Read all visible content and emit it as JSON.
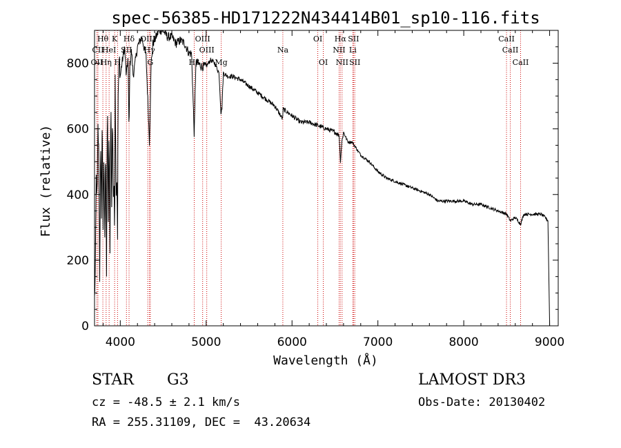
{
  "chart_data": {
    "type": "line",
    "title": "spec-56385-HD171222N434414B01_sp10-116.fits",
    "xlabel": "Wavelength (Å)",
    "ylabel": "Flux (relative)",
    "xlim": [
      3700,
      9100
    ],
    "ylim": [
      0,
      900
    ],
    "xticks": [
      4000,
      5000,
      6000,
      7000,
      8000,
      9000
    ],
    "yticks": [
      0,
      200,
      400,
      600,
      800
    ],
    "grid": false,
    "series": [
      {
        "name": "spectrum",
        "x": [
          3700,
          3710,
          3720,
          3730,
          3740,
          3750,
          3760,
          3770,
          3780,
          3790,
          3800,
          3810,
          3820,
          3830,
          3840,
          3850,
          3860,
          3870,
          3880,
          3890,
          3900,
          3910,
          3920,
          3930,
          3934,
          3940,
          3950,
          3960,
          3968,
          3975,
          3990,
          4000,
          4020,
          4050,
          4070,
          4090,
          4102,
          4110,
          4130,
          4150,
          4200,
          4250,
          4300,
          4340,
          4360,
          4380,
          4400,
          4450,
          4500,
          4550,
          4600,
          4650,
          4700,
          4750,
          4800,
          4830,
          4861,
          4880,
          4900,
          4950,
          5000,
          5050,
          5100,
          5150,
          5172,
          5183,
          5200,
          5250,
          5300,
          5400,
          5500,
          5600,
          5700,
          5800,
          5890,
          5896,
          5950,
          6000,
          6100,
          6200,
          6300,
          6400,
          6500,
          6550,
          6563,
          6580,
          6600,
          6650,
          6700,
          6750,
          6800,
          6900,
          7000,
          7100,
          7200,
          7300,
          7400,
          7500,
          7600,
          7700,
          7800,
          7900,
          8000,
          8100,
          8200,
          8300,
          8400,
          8500,
          8542,
          8600,
          8662,
          8700,
          8800,
          8900,
          8950,
          8980,
          9000
        ],
        "values": [
          80,
          180,
          450,
          380,
          600,
          520,
          150,
          550,
          350,
          640,
          300,
          520,
          250,
          580,
          150,
          700,
          320,
          600,
          200,
          720,
          350,
          650,
          400,
          400,
          220,
          780,
          420,
          450,
          280,
          700,
          820,
          760,
          800,
          850,
          760,
          820,
          580,
          790,
          840,
          760,
          850,
          880,
          820,
          560,
          800,
          860,
          870,
          900,
          900,
          880,
          880,
          860,
          870,
          860,
          830,
          830,
          580,
          800,
          800,
          790,
          790,
          810,
          800,
          770,
          650,
          660,
          770,
          760,
          760,
          750,
          730,
          710,
          690,
          670,
          630,
          660,
          650,
          640,
          620,
          620,
          610,
          600,
          590,
          580,
          500,
          560,
          590,
          560,
          560,
          540,
          520,
          500,
          470,
          450,
          440,
          430,
          420,
          410,
          400,
          380,
          380,
          380,
          380,
          370,
          370,
          360,
          350,
          340,
          320,
          330,
          310,
          340,
          340,
          340,
          330,
          320,
          0
        ]
      }
    ],
    "lines": [
      {
        "label": "OII",
        "x": 3727,
        "row": 2
      },
      {
        "label": "CII",
        "x": 3740,
        "row": 1
      },
      {
        "label": "Hθ",
        "x": 3797,
        "row": 0
      },
      {
        "label": "Hη",
        "x": 3835,
        "row": 2
      },
      {
        "label": "HeI",
        "x": 3870,
        "row": 1
      },
      {
        "label": "K",
        "x": 3934,
        "row": 0
      },
      {
        "label": "H",
        "x": 3968,
        "row": 2
      },
      {
        "label": "SII",
        "x": 4072,
        "row": 1
      },
      {
        "label": "Hδ",
        "x": 4102,
        "row": 0
      },
      {
        "label": "OIII",
        "x": 4320,
        "row": 0
      },
      {
        "label": "Hγ",
        "x": 4340,
        "row": 1
      },
      {
        "label": "G",
        "x": 4350,
        "row": 2
      },
      {
        "label": "Hβ",
        "x": 4861,
        "row": 2
      },
      {
        "label": "OIII",
        "x": 4959,
        "row": 0
      },
      {
        "label": "OIII",
        "x": 5007,
        "row": 1
      },
      {
        "label": "Mg",
        "x": 5175,
        "row": 2
      },
      {
        "label": "Na",
        "x": 5893,
        "row": 1
      },
      {
        "label": "OI",
        "x": 6300,
        "row": 0
      },
      {
        "label": "OI",
        "x": 6364,
        "row": 2
      },
      {
        "label": "Hα",
        "x": 6563,
        "row": 0
      },
      {
        "label": "NII",
        "x": 6548,
        "row": 1
      },
      {
        "label": "NII",
        "x": 6583,
        "row": 2
      },
      {
        "label": "SII",
        "x": 6716,
        "row": 0
      },
      {
        "label": "Li",
        "x": 6708,
        "row": 1
      },
      {
        "label": "SII",
        "x": 6731,
        "row": 2
      },
      {
        "label": "CaII",
        "x": 8498,
        "row": 0
      },
      {
        "label": "CaII",
        "x": 8542,
        "row": 1
      },
      {
        "label": "CaII",
        "x": 8662,
        "row": 2
      }
    ]
  },
  "footer": {
    "object_class": "STAR",
    "subclass": "G3",
    "redshift_line": "cz = -48.5 ± 2.1 km/s",
    "coords_line": "RA = 255.31109, DEC =  43.20634",
    "survey": "LAMOST DR3",
    "obs_date": "Obs-Date: 20130402"
  },
  "colors": {
    "ink": "#000000",
    "line_markers": "#cc0000",
    "background": "#ffffff"
  }
}
